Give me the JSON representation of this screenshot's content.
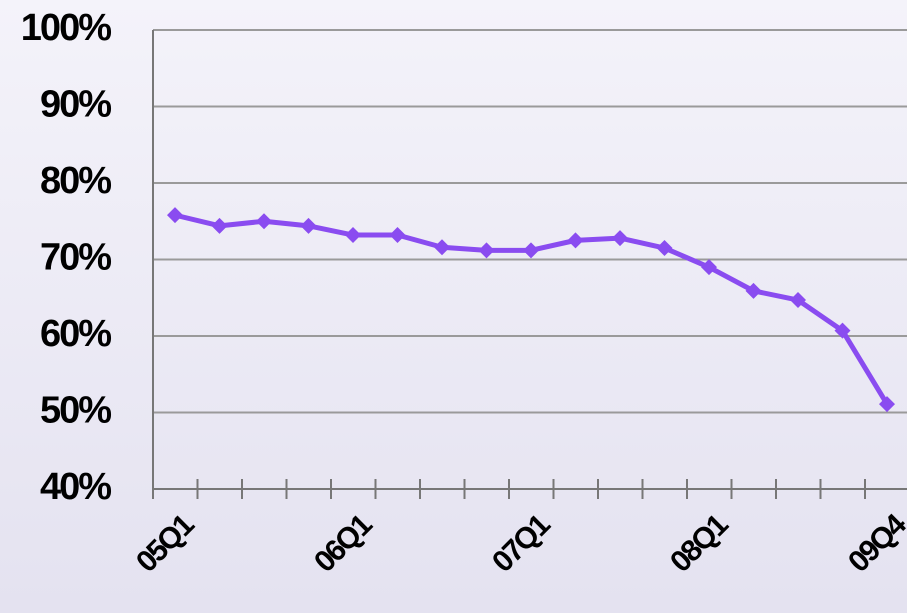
{
  "chart_data": {
    "type": "line",
    "categories": [
      "05Q1",
      null,
      null,
      null,
      "06Q1",
      null,
      null,
      null,
      "07Q1",
      null,
      null,
      null,
      "08Q1",
      null,
      null,
      null,
      "09Q4"
    ],
    "series": [
      {
        "color": "#8a4cf0",
        "values": [
          75.8,
          74.4,
          75.0,
          74.4,
          73.2,
          73.2,
          71.6,
          71.2,
          71.2,
          72.5,
          72.8,
          71.5,
          69.0,
          65.9,
          64.7,
          60.7,
          51.1
        ]
      }
    ],
    "ylim": [
      40,
      100
    ],
    "yticks": [
      {
        "value": 40,
        "label": "40%"
      },
      {
        "value": 50,
        "label": "50%"
      },
      {
        "value": 60,
        "label": "60%"
      },
      {
        "value": 70,
        "label": "70%"
      },
      {
        "value": 80,
        "label": "80%"
      },
      {
        "value": 90,
        "label": "90%"
      },
      {
        "value": 100,
        "label": "100%"
      }
    ],
    "grid": true
  }
}
